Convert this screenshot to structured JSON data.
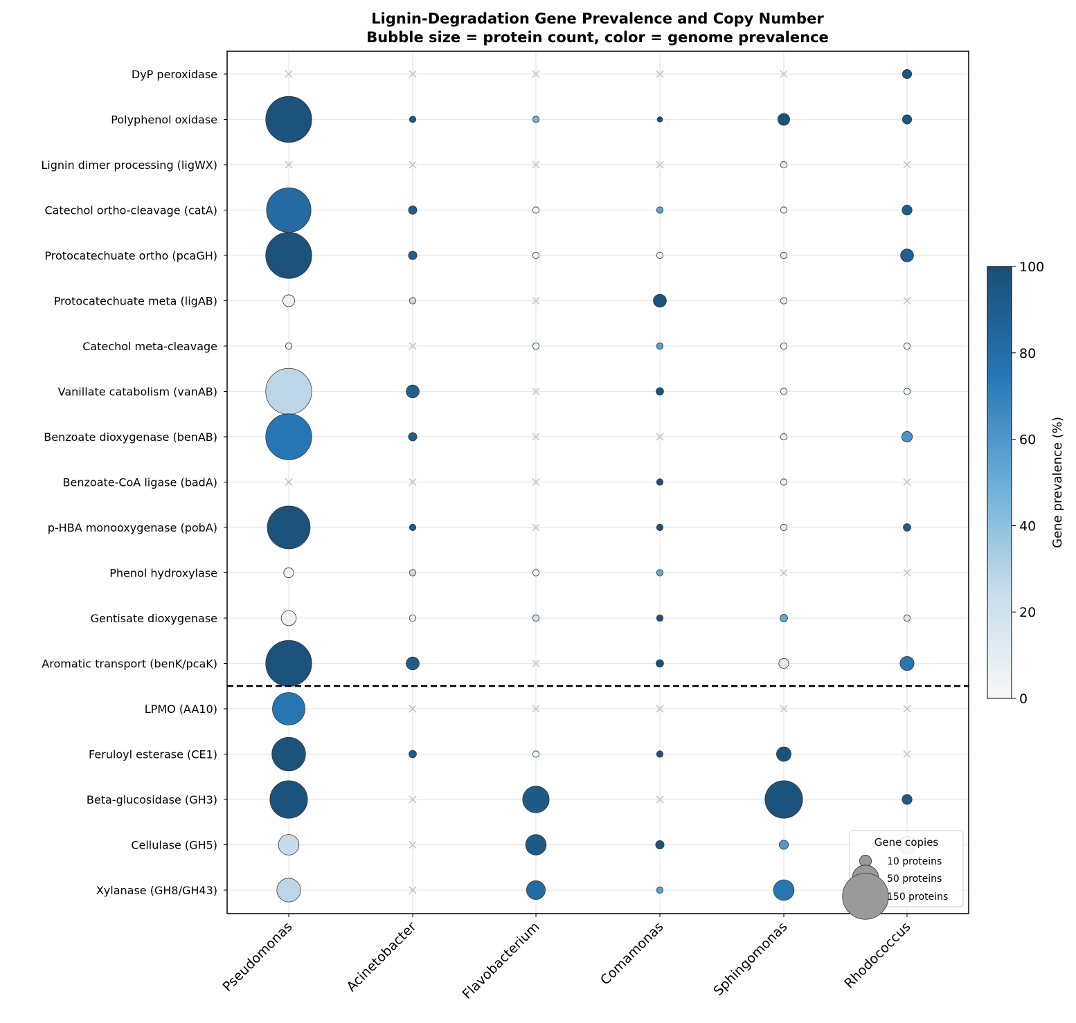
{
  "chart_data": {
    "type": "bubble",
    "title": "Lignin-Degradation Gene Prevalence and Copy Number",
    "subtitle": "Bubble size = protein count, color = genome prevalence",
    "categories_x": [
      "Pseudomonas",
      "Acinetobacter",
      "Flavobacterium",
      "Comamonas",
      "Sphingomonas",
      "Rhodococcus"
    ],
    "categories_y": [
      "DyP peroxidase",
      "Polyphenol oxidase",
      "Lignin dimer processing (ligWX)",
      "Catechol ortho-cleavage (catA)",
      "Protocatechuate ortho (pcaGH)",
      "Protocatechuate meta (ligAB)",
      "Catechol meta-cleavage",
      "Vanillate catabolism (vanAB)",
      "Benzoate dioxygenase (benAB)",
      "Benzoate-CoA ligase (badA)",
      "p-HBA monooxygenase (pobA)",
      "Phenol hydroxylase",
      "Gentisate dioxygenase",
      "Aromatic transport (benK/pcaK)",
      "LPMO (AA10)",
      "Feruloyl esterase (CE1)",
      "Beta-glucosidase (GH3)",
      "Cellulase (GH5)",
      "Xylanase (GH8/GH43)"
    ],
    "separator_after_row": "Aromatic transport (benK/pcaK)",
    "points_note_fields": [
      "gene",
      "genus",
      "proteins",
      "prevalence"
    ],
    "points": [
      [
        "DyP peroxidase",
        "Rhodococcus",
        6,
        95
      ],
      [
        "Polyphenol oxidase",
        "Pseudomonas",
        150,
        97
      ],
      [
        "Polyphenol oxidase",
        "Acinetobacter",
        3,
        92
      ],
      [
        "Polyphenol oxidase",
        "Flavobacterium",
        3,
        48
      ],
      [
        "Polyphenol oxidase",
        "Comamonas",
        2,
        97
      ],
      [
        "Polyphenol oxidase",
        "Sphingomonas",
        10,
        97
      ],
      [
        "Polyphenol oxidase",
        "Rhodococcus",
        6,
        95
      ],
      [
        "Lignin dimer processing (ligWX)",
        "Sphingomonas",
        3,
        5
      ],
      [
        "Catechol ortho-cleavage (catA)",
        "Pseudomonas",
        140,
        82
      ],
      [
        "Catechol ortho-cleavage (catA)",
        "Acinetobacter",
        5,
        92
      ],
      [
        "Catechol ortho-cleavage (catA)",
        "Flavobacterium",
        3,
        5
      ],
      [
        "Catechol ortho-cleavage (catA)",
        "Comamonas",
        3,
        55
      ],
      [
        "Catechol ortho-cleavage (catA)",
        "Sphingomonas",
        3,
        5
      ],
      [
        "Catechol ortho-cleavage (catA)",
        "Rhodococcus",
        7,
        90
      ],
      [
        "Protocatechuate ortho (pcaGH)",
        "Pseudomonas",
        150,
        97
      ],
      [
        "Protocatechuate ortho (pcaGH)",
        "Acinetobacter",
        5,
        90
      ],
      [
        "Protocatechuate ortho (pcaGH)",
        "Flavobacterium",
        3,
        5
      ],
      [
        "Protocatechuate ortho (pcaGH)",
        "Comamonas",
        3,
        5
      ],
      [
        "Protocatechuate ortho (pcaGH)",
        "Sphingomonas",
        3,
        10
      ],
      [
        "Protocatechuate ortho (pcaGH)",
        "Rhodococcus",
        12,
        90
      ],
      [
        "Protocatechuate meta (ligAB)",
        "Pseudomonas",
        10,
        5
      ],
      [
        "Protocatechuate meta (ligAB)",
        "Acinetobacter",
        3,
        25
      ],
      [
        "Protocatechuate meta (ligAB)",
        "Comamonas",
        12,
        97
      ],
      [
        "Protocatechuate meta (ligAB)",
        "Sphingomonas",
        3,
        10
      ],
      [
        "Catechol meta-cleavage",
        "Pseudomonas",
        3,
        5
      ],
      [
        "Catechol meta-cleavage",
        "Flavobacterium",
        3,
        5
      ],
      [
        "Catechol meta-cleavage",
        "Comamonas",
        3,
        55
      ],
      [
        "Catechol meta-cleavage",
        "Sphingomonas",
        3,
        5
      ],
      [
        "Catechol meta-cleavage",
        "Rhodococcus",
        3,
        5
      ],
      [
        "Vanillate catabolism (vanAB)",
        "Pseudomonas",
        150,
        28
      ],
      [
        "Vanillate catabolism (vanAB)",
        "Acinetobacter",
        12,
        90
      ],
      [
        "Vanillate catabolism (vanAB)",
        "Comamonas",
        4,
        97
      ],
      [
        "Vanillate catabolism (vanAB)",
        "Sphingomonas",
        3,
        5
      ],
      [
        "Vanillate catabolism (vanAB)",
        "Rhodococcus",
        3,
        5
      ],
      [
        "Benzoate dioxygenase (benAB)",
        "Pseudomonas",
        150,
        75
      ],
      [
        "Benzoate dioxygenase (benAB)",
        "Acinetobacter",
        5,
        90
      ],
      [
        "Benzoate dioxygenase (benAB)",
        "Sphingomonas",
        3,
        5
      ],
      [
        "Benzoate dioxygenase (benAB)",
        "Rhodococcus",
        8,
        62
      ],
      [
        "Benzoate-CoA ligase (badA)",
        "Comamonas",
        3,
        97
      ],
      [
        "Benzoate-CoA ligase (badA)",
        "Sphingomonas",
        3,
        10
      ],
      [
        "p-HBA monooxygenase (pobA)",
        "Pseudomonas",
        130,
        97
      ],
      [
        "p-HBA monooxygenase (pobA)",
        "Acinetobacter",
        3,
        92
      ],
      [
        "p-HBA monooxygenase (pobA)",
        "Comamonas",
        3,
        97
      ],
      [
        "p-HBA monooxygenase (pobA)",
        "Sphingomonas",
        3,
        10
      ],
      [
        "p-HBA monooxygenase (pobA)",
        "Rhodococcus",
        4,
        90
      ],
      [
        "Phenol hydroxylase",
        "Pseudomonas",
        7,
        5
      ],
      [
        "Phenol hydroxylase",
        "Acinetobacter",
        3,
        25
      ],
      [
        "Phenol hydroxylase",
        "Flavobacterium",
        3,
        5
      ],
      [
        "Phenol hydroxylase",
        "Comamonas",
        3,
        52
      ],
      [
        "Gentisate dioxygenase",
        "Pseudomonas",
        16,
        5
      ],
      [
        "Gentisate dioxygenase",
        "Acinetobacter",
        3,
        5
      ],
      [
        "Gentisate dioxygenase",
        "Flavobacterium",
        3,
        22
      ],
      [
        "Gentisate dioxygenase",
        "Comamonas",
        3,
        97
      ],
      [
        "Gentisate dioxygenase",
        "Sphingomonas",
        4,
        52
      ],
      [
        "Gentisate dioxygenase",
        "Rhodococcus",
        3,
        15
      ],
      [
        "Aromatic transport (benK/pcaK)",
        "Pseudomonas",
        150,
        97
      ],
      [
        "Aromatic transport (benK/pcaK)",
        "Acinetobacter",
        12,
        92
      ],
      [
        "Aromatic transport (benK/pcaK)",
        "Comamonas",
        4,
        97
      ],
      [
        "Aromatic transport (benK/pcaK)",
        "Sphingomonas",
        7,
        10
      ],
      [
        "Aromatic transport (benK/pcaK)",
        "Rhodococcus",
        14,
        75
      ],
      [
        "LPMO (AA10)",
        "Pseudomonas",
        75,
        75
      ],
      [
        "Feruloyl esterase (CE1)",
        "Pseudomonas",
        80,
        97
      ],
      [
        "Feruloyl esterase (CE1)",
        "Acinetobacter",
        4,
        92
      ],
      [
        "Feruloyl esterase (CE1)",
        "Flavobacterium",
        3,
        5
      ],
      [
        "Feruloyl esterase (CE1)",
        "Comamonas",
        3,
        97
      ],
      [
        "Feruloyl esterase (CE1)",
        "Sphingomonas",
        15,
        97
      ],
      [
        "Beta-glucosidase (GH3)",
        "Pseudomonas",
        100,
        97
      ],
      [
        "Beta-glucosidase (GH3)",
        "Flavobacterium",
        50,
        92
      ],
      [
        "Beta-glucosidase (GH3)",
        "Sphingomonas",
        100,
        97
      ],
      [
        "Beta-glucosidase (GH3)",
        "Rhodococcus",
        7,
        92
      ],
      [
        "Cellulase (GH5)",
        "Pseudomonas",
        30,
        25
      ],
      [
        "Cellulase (GH5)",
        "Flavobacterium",
        30,
        92
      ],
      [
        "Cellulase (GH5)",
        "Comamonas",
        5,
        97
      ],
      [
        "Cellulase (GH5)",
        "Sphingomonas",
        6,
        60
      ],
      [
        "Cellulase (GH5)",
        "Rhodococcus",
        20,
        28
      ],
      [
        "Xylanase (GH8/GH43)",
        "Pseudomonas",
        40,
        28
      ],
      [
        "Xylanase (GH8/GH43)",
        "Flavobacterium",
        25,
        82
      ],
      [
        "Xylanase (GH8/GH43)",
        "Comamonas",
        3,
        55
      ],
      [
        "Xylanase (GH8/GH43)",
        "Sphingomonas",
        30,
        75
      ],
      [
        "Xylanase (GH8/GH43)",
        "Rhodococcus",
        3,
        5
      ]
    ],
    "colorbar": {
      "label": "Gene prevalence (%)",
      "range": [
        0,
        100
      ],
      "ticks": [
        "0",
        "20",
        "40",
        "60",
        "80",
        "100"
      ],
      "colors": [
        "#f7f7f7",
        "#c7dcea",
        "#6aaed6",
        "#2676b4",
        "#1a4e75"
      ]
    },
    "legend": {
      "title": "Gene copies",
      "placement": "lower-right",
      "entries": [
        {
          "label": "10 proteins",
          "proteins": 10
        },
        {
          "label": "50 proteins",
          "proteins": 50
        },
        {
          "label": "150 proteins",
          "proteins": 150
        }
      ]
    },
    "grid": true
  }
}
